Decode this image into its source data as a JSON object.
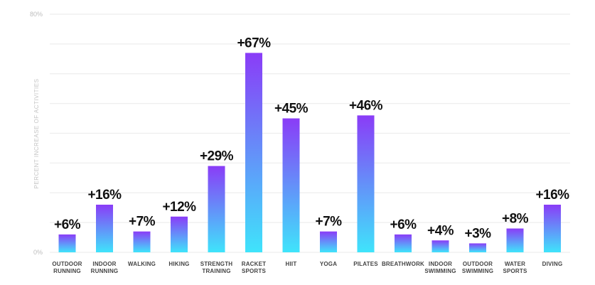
{
  "chart_data": {
    "type": "bar",
    "title": "",
    "ylabel": "PERCENT INCREASE OF ACTIVITIES",
    "xlabel": "",
    "ylim": [
      0,
      80
    ],
    "y_ticks": [
      {
        "value": 0,
        "label": "0%"
      },
      {
        "value": 80,
        "label": "80%"
      }
    ],
    "grid": true,
    "grid_step": 10,
    "categories": [
      [
        "OUTDOOR",
        "RUNNING"
      ],
      [
        "INDOOR",
        "RUNNING"
      ],
      [
        "WALKING"
      ],
      [
        "HIKING"
      ],
      [
        "STRENGTH",
        "TRAINING"
      ],
      [
        "RACKET",
        "SPORTS"
      ],
      [
        "HIIT"
      ],
      [
        "YOGA"
      ],
      [
        "PILATES"
      ],
      [
        "BREATHWORK"
      ],
      [
        "INDOOR",
        "SWIMMING"
      ],
      [
        "OUTDOOR",
        "SWIMMING"
      ],
      [
        "WATER",
        "SPORTS"
      ],
      [
        "DIVING"
      ]
    ],
    "values": [
      6,
      16,
      7,
      12,
      29,
      67,
      45,
      7,
      46,
      6,
      4,
      3,
      8,
      16
    ],
    "value_labels": [
      "+6%",
      "+16%",
      "+7%",
      "+12%",
      "+29%",
      "+67%",
      "+45%",
      "+7%",
      "+46%",
      "+6%",
      "+4%",
      "+3%",
      "+8%",
      "+16%"
    ],
    "colors": {
      "bar_top": "#8a3cf7",
      "bar_bottom": "#3fe4fb",
      "grid": "#eeeeee"
    }
  }
}
